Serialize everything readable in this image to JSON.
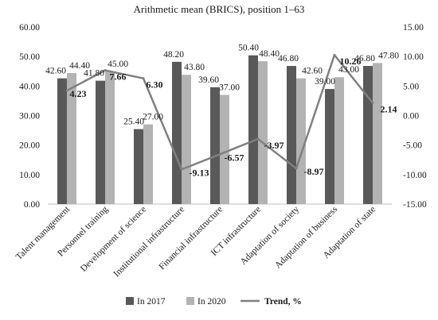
{
  "chart_data": {
    "type": "bar",
    "title": "Arithmetic mean (BRICS), position 1–63",
    "categories": [
      "Talent management",
      "Personnel training",
      "Development of science",
      "Institutional infrastructure",
      "Financial infrastructure",
      "ICT infrastructure",
      "Adaptation of society",
      "Adaptation of business",
      "Adaptation of state"
    ],
    "series": [
      {
        "name": "In 2017",
        "kind": "bar",
        "axis": "left",
        "color": "#595959",
        "values": [
          42.6,
          41.8,
          25.4,
          48.2,
          39.6,
          50.4,
          46.8,
          39.0,
          46.8
        ],
        "labels": [
          "42.60",
          "41.80",
          "25.40",
          "48.20",
          "39.60",
          "50.40",
          "46.80",
          "39.00",
          "46.80"
        ]
      },
      {
        "name": "In 2020",
        "kind": "bar",
        "axis": "left",
        "color": "#b3b3b3",
        "values": [
          44.4,
          45.0,
          27.0,
          43.8,
          37.0,
          48.4,
          42.6,
          43.0,
          47.8
        ],
        "labels": [
          "44.40",
          "45.00",
          "27.00",
          "43.80",
          "37.00",
          "48.40",
          "42.60",
          "43.00",
          "47.80"
        ]
      },
      {
        "name": "Trend, %",
        "kind": "line",
        "axis": "right",
        "color": "#808080",
        "values": [
          4.23,
          7.66,
          6.3,
          -9.13,
          -6.57,
          -3.97,
          -8.97,
          10.26,
          2.14
        ],
        "labels": [
          "4.23",
          "7.66",
          "6.30",
          "-9.13",
          "-6.57",
          "-3.97",
          "-8.97",
          "10.26",
          "2.14"
        ]
      }
    ],
    "y_left": {
      "min": 0,
      "max": 60,
      "step": 10,
      "ticks": [
        "0.00",
        "10.00",
        "20.00",
        "30.00",
        "40.00",
        "50.00",
        "60.00"
      ]
    },
    "y_right": {
      "min": -15,
      "max": 15,
      "step": 5,
      "ticks": [
        "-15.00",
        "-10.00",
        "-5.00",
        "0.00",
        "5.00",
        "10.00",
        "15.00"
      ]
    },
    "grid": false,
    "legend_position": "bottom"
  }
}
